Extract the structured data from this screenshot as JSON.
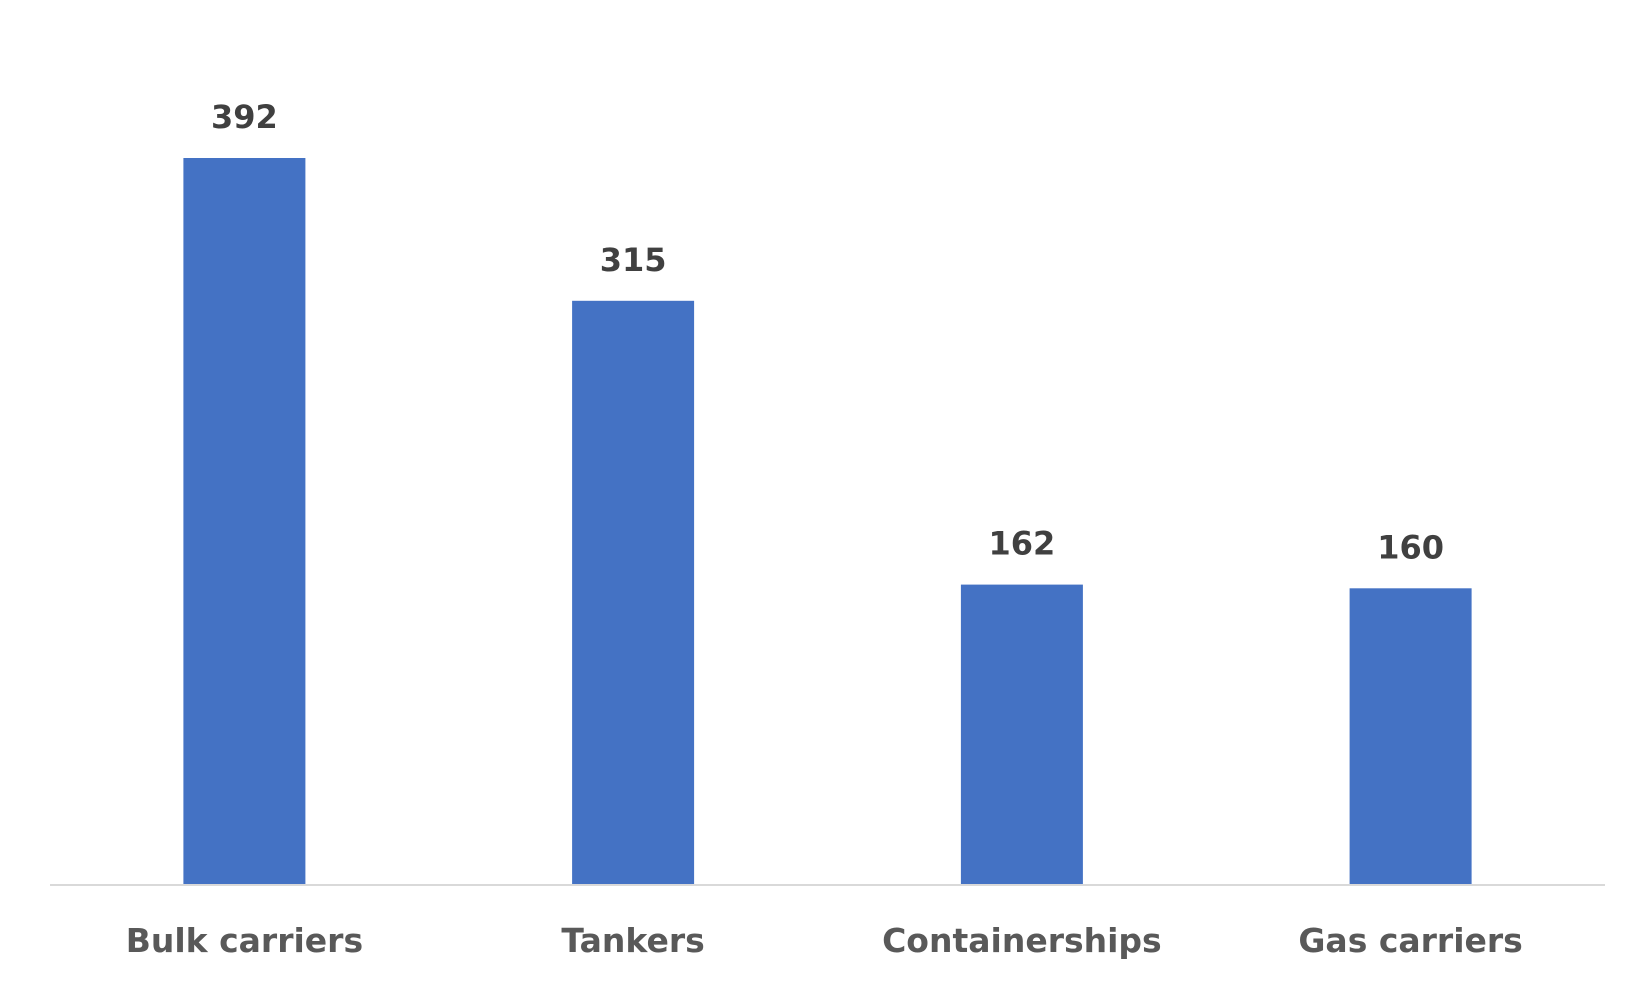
{
  "chart_data": {
    "type": "bar",
    "categories": [
      "Bulk carriers",
      "Tankers",
      "Containerships",
      "Gas carriers"
    ],
    "values": [
      392,
      315,
      162,
      160
    ],
    "data_labels": [
      "392",
      "315",
      "162",
      "160"
    ],
    "title": "",
    "xlabel": "",
    "ylabel": "",
    "ylim": [
      0,
      392
    ],
    "grid": false,
    "legend": "none",
    "colors": {
      "bar": "#4472C4",
      "axis_line": "#D9D9D9",
      "data_label": "#404040",
      "category_label": "#595959"
    }
  }
}
